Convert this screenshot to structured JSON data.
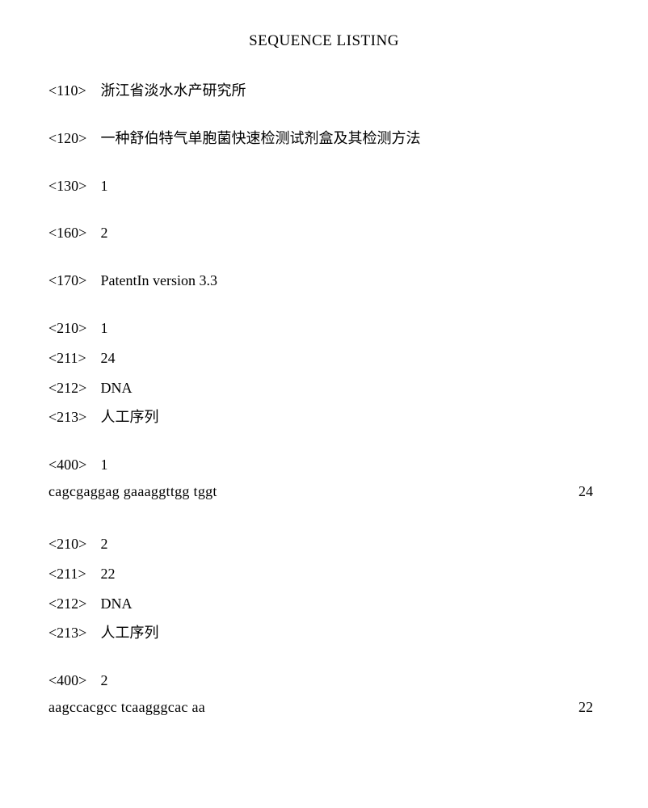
{
  "title": "SEQUENCE LISTING",
  "header": {
    "h110": {
      "tag": "<110>",
      "value": "浙江省淡水水产研究所"
    },
    "h120": {
      "tag": "<120>",
      "value": "一种舒伯特气单胞菌快速检测试剂盒及其检测方法"
    },
    "h130": {
      "tag": "<130>",
      "value": "1"
    },
    "h160": {
      "tag": "<160>",
      "value": "2"
    },
    "h170": {
      "tag": "<170>",
      "value": "PatentIn version 3.3"
    }
  },
  "seq1": {
    "s210": {
      "tag": "<210>",
      "value": "1"
    },
    "s211": {
      "tag": "<211>",
      "value": "24"
    },
    "s212": {
      "tag": "<212>",
      "value": "DNA"
    },
    "s213": {
      "tag": "<213>",
      "value": "人工序列"
    },
    "s400": {
      "tag": "<400>",
      "value": "1"
    },
    "sequence": "cagcgaggag gaaaggttgg tggt",
    "length": "24"
  },
  "seq2": {
    "s210": {
      "tag": "<210>",
      "value": "2"
    },
    "s211": {
      "tag": "<211>",
      "value": "22"
    },
    "s212": {
      "tag": "<212>",
      "value": "DNA"
    },
    "s213": {
      "tag": "<213>",
      "value": "人工序列"
    },
    "s400": {
      "tag": "<400>",
      "value": "2"
    },
    "sequence": "aagccacgcc tcaagggcac aa",
    "length": "22"
  }
}
